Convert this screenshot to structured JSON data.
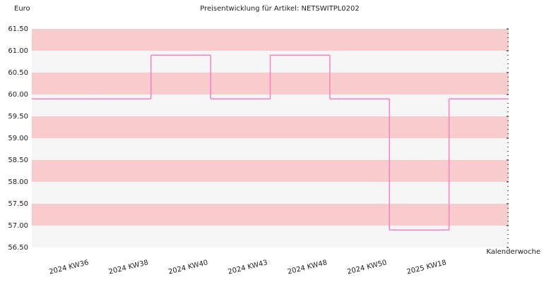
{
  "chart_data": {
    "type": "step",
    "title": "Preisentwicklung für Artikel: NETSWITPL0202",
    "y_label": "Euro",
    "x_label": "Kalenderwoche",
    "categories": [
      "2024 KW36",
      "2024 KW38",
      "2024 KW40",
      "2024 KW43",
      "2024 KW48",
      "2024 KW50",
      "2025 KW18",
      null
    ],
    "series": [
      {
        "color": "#ff7fbf",
        "values": [
          59.9,
          59.9,
          60.9,
          59.9,
          60.9,
          59.9,
          56.9,
          59.9
        ]
      }
    ],
    "ylim": [
      56.5,
      61.5
    ],
    "yticks": [
      {
        "value": 56.5,
        "label": "56.50"
      },
      {
        "value": 57,
        "label": "57.00"
      },
      {
        "value": 57.5,
        "label": "57.50"
      },
      {
        "value": 58,
        "label": "58.00"
      },
      {
        "value": 58.5,
        "label": "58.50"
      },
      {
        "value": 59,
        "label": "59.00"
      },
      {
        "value": 59.5,
        "label": "59.50"
      },
      {
        "value": 60,
        "label": "60.00"
      },
      {
        "value": 60.5,
        "label": "60.50"
      },
      {
        "value": 61,
        "label": "61.00"
      },
      {
        "value": 61.5,
        "label": "61.50"
      }
    ],
    "band_colors": [
      "#f5f5f5",
      "#f8cccc"
    ]
  }
}
